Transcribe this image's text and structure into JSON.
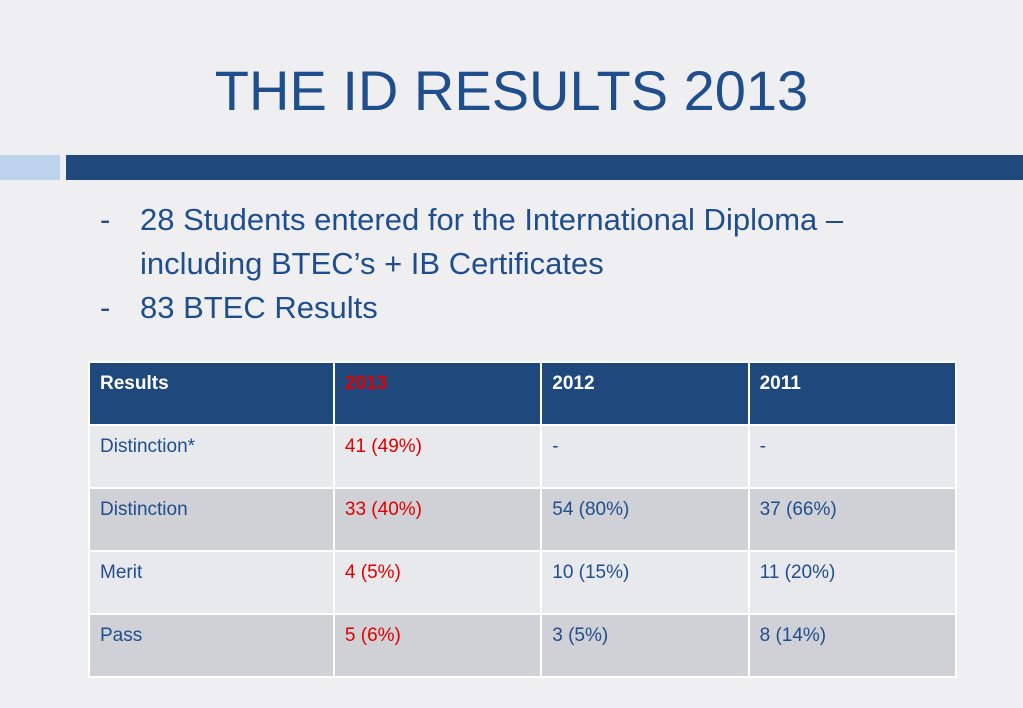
{
  "header": {
    "title": "THE ID RESULTS 2013"
  },
  "bullets": [
    {
      "marker": "-",
      "text": "28 Students entered for the International Diploma – including BTEC’s + IB Certificates"
    },
    {
      "marker": "-",
      "text": "83 BTEC Results"
    }
  ],
  "table": {
    "columns": [
      "Results",
      "2013",
      "2012",
      "2011"
    ],
    "rows": [
      [
        "Distinction*",
        "41 (49%)",
        "-",
        "-"
      ],
      [
        "Distinction",
        "33 (40%)",
        "54 (80%)",
        "37 (66%)"
      ],
      [
        "Merit",
        "4 (5%)",
        "10 (15%)",
        "11 (20%)"
      ],
      [
        "Pass",
        "5 (6%)",
        "3 (5%)",
        "8 (14%)"
      ]
    ]
  }
}
